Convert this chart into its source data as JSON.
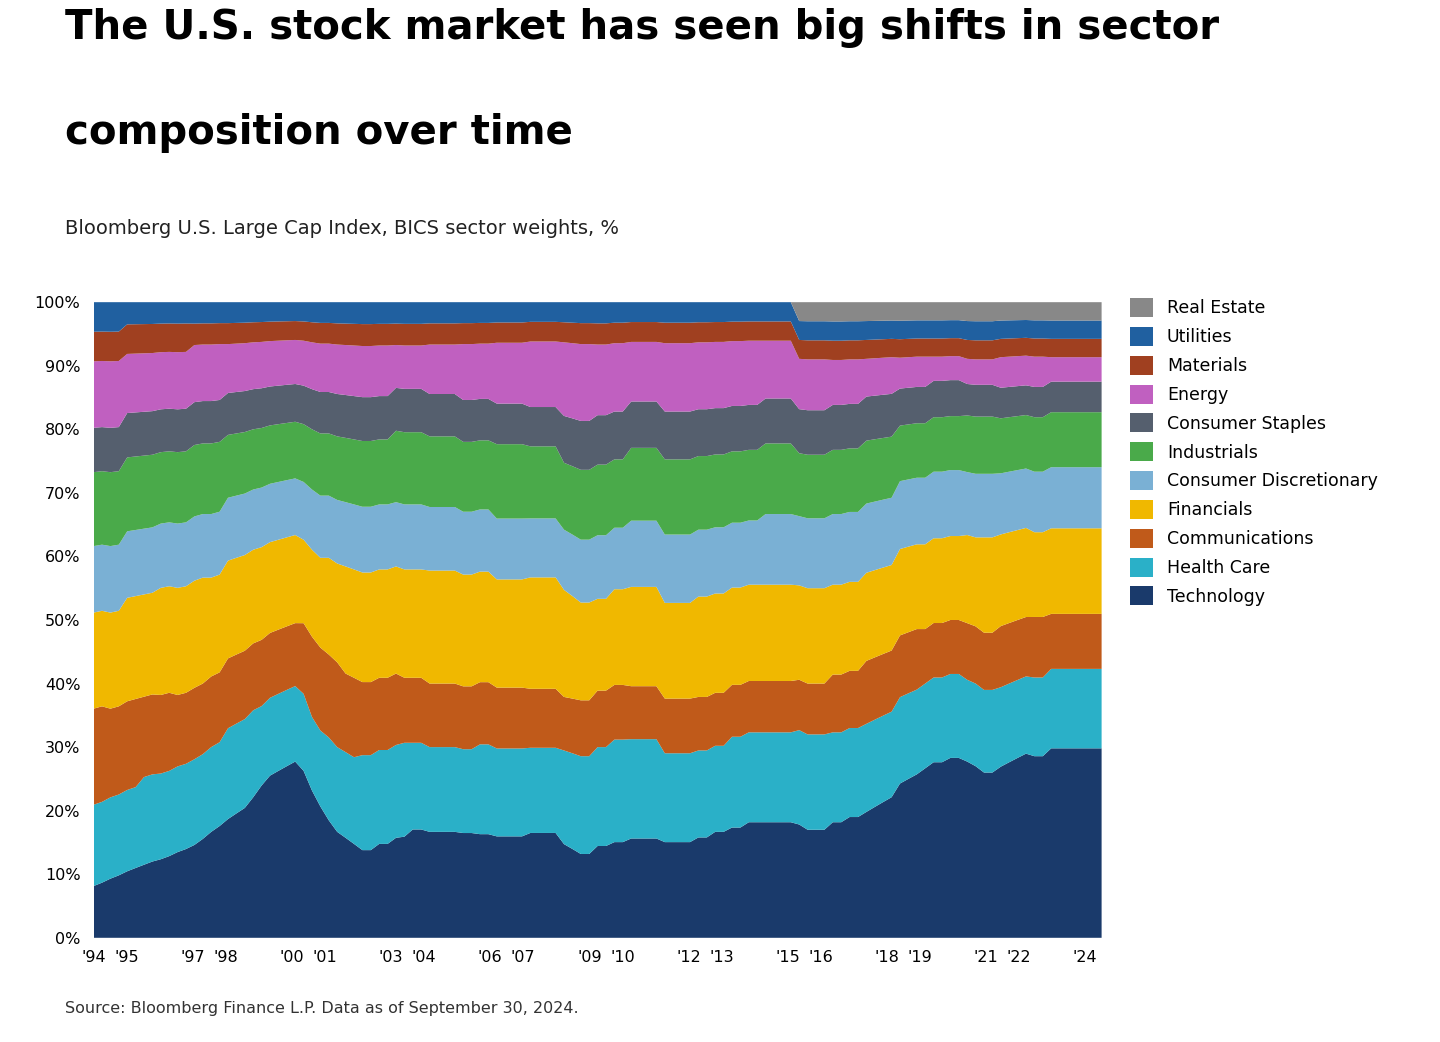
{
  "title_line1": "The U.S. stock market has seen big shifts in sector",
  "title_line2": "composition over time",
  "subtitle": "Bloomberg U.S. Large Cap Index, BICS sector weights, %",
  "source": "Source: Bloomberg Finance L.P. Data as of September 30, 2024.",
  "sectors": [
    "Technology",
    "Health Care",
    "Communications",
    "Financials",
    "Consumer Discretionary",
    "Industrials",
    "Consumer Staples",
    "Energy",
    "Materials",
    "Utilities",
    "Real Estate"
  ],
  "colors": [
    "#1a3a6b",
    "#2ab0c8",
    "#c05a1a",
    "#f0b800",
    "#7ab0d4",
    "#4aaa4a",
    "#555f6e",
    "#c060c0",
    "#a04020",
    "#2060a0",
    "#888888"
  ],
  "Technology": [
    7.0,
    7.5,
    8.0,
    8.5,
    9.0,
    9.5,
    10.0,
    10.5,
    11.0,
    11.5,
    12.0,
    12.5,
    13.0,
    14.0,
    15.0,
    16.0,
    17.0,
    18.0,
    19.0,
    21.0,
    23.0,
    25.0,
    26.0,
    27.0,
    28.0,
    26.0,
    22.0,
    19.0,
    17.0,
    15.0,
    14.0,
    13.0,
    12.0,
    12.0,
    13.0,
    13.0,
    14.0,
    14.0,
    15.0,
    15.0,
    15.0,
    15.0,
    15.0,
    15.0,
    15.0,
    15.0,
    15.0,
    15.0,
    15.0,
    15.0,
    15.0,
    15.0,
    16.0,
    16.0,
    16.0,
    16.0,
    14.0,
    13.0,
    12.0,
    12.0,
    13.0,
    13.0,
    14.0,
    14.0,
    15.0,
    15.0,
    15.0,
    15.0,
    14.0,
    14.0,
    14.0,
    14.0,
    15.0,
    15.0,
    16.0,
    16.0,
    17.0,
    17.0,
    18.0,
    18.0,
    18.0,
    18.0,
    18.0,
    18.0,
    18.0,
    17.0,
    17.0,
    17.0,
    18.0,
    18.0,
    19.0,
    19.0,
    20.0,
    21.0,
    22.0,
    23.0,
    25.0,
    26.0,
    27.0,
    28.0,
    29.0,
    29.0,
    30.0,
    30.0,
    28.0,
    27.0,
    26.0,
    26.0,
    28.0,
    29.0,
    30.0,
    31.0,
    30.0,
    30.0,
    31.0,
    31.0,
    31.0,
    31.0,
    31.0,
    31.0,
    31.0
  ],
  "Health Care": [
    11.0,
    11.0,
    11.0,
    11.0,
    11.0,
    11.0,
    12.0,
    12.0,
    12.0,
    12.0,
    12.0,
    12.0,
    12.0,
    12.0,
    12.0,
    12.0,
    13.0,
    13.0,
    13.0,
    13.0,
    12.0,
    12.0,
    12.0,
    12.0,
    12.0,
    12.0,
    11.0,
    11.0,
    12.0,
    12.0,
    12.0,
    12.0,
    13.0,
    13.0,
    13.0,
    13.0,
    13.0,
    13.0,
    12.0,
    12.0,
    12.0,
    12.0,
    12.0,
    12.0,
    12.0,
    12.0,
    13.0,
    13.0,
    13.0,
    13.0,
    13.0,
    13.0,
    13.0,
    13.0,
    13.0,
    13.0,
    14.0,
    14.0,
    14.0,
    14.0,
    14.0,
    14.0,
    15.0,
    15.0,
    15.0,
    15.0,
    15.0,
    15.0,
    13.0,
    13.0,
    13.0,
    13.0,
    13.0,
    13.0,
    13.0,
    13.0,
    14.0,
    14.0,
    14.0,
    14.0,
    14.0,
    14.0,
    14.0,
    14.0,
    15.0,
    15.0,
    15.0,
    15.0,
    14.0,
    14.0,
    14.0,
    14.0,
    14.0,
    14.0,
    14.0,
    14.0,
    14.0,
    14.0,
    14.0,
    14.0,
    14.0,
    14.0,
    14.0,
    14.0,
    13.0,
    13.0,
    13.0,
    13.0,
    13.0,
    13.0,
    13.0,
    13.0,
    13.0,
    13.0,
    13.0,
    13.0,
    13.0,
    13.0,
    13.0,
    13.0,
    13.0
  ],
  "Communications": [
    13.0,
    13.0,
    12.0,
    12.0,
    12.0,
    12.0,
    11.0,
    11.0,
    11.0,
    11.0,
    10.0,
    10.0,
    10.0,
    10.0,
    10.0,
    10.0,
    10.0,
    10.0,
    10.0,
    10.0,
    10.0,
    10.0,
    10.0,
    10.0,
    10.0,
    11.0,
    12.0,
    12.0,
    12.0,
    12.0,
    11.0,
    11.0,
    10.0,
    10.0,
    10.0,
    10.0,
    10.0,
    9.0,
    9.0,
    9.0,
    9.0,
    9.0,
    9.0,
    9.0,
    9.0,
    9.0,
    9.0,
    9.0,
    9.0,
    9.0,
    9.0,
    9.0,
    9.0,
    9.0,
    9.0,
    9.0,
    8.0,
    8.0,
    8.0,
    8.0,
    8.0,
    8.0,
    8.0,
    8.0,
    8.0,
    8.0,
    8.0,
    8.0,
    8.0,
    8.0,
    8.0,
    8.0,
    8.0,
    8.0,
    8.0,
    8.0,
    8.0,
    8.0,
    8.0,
    8.0,
    8.0,
    8.0,
    8.0,
    8.0,
    8.0,
    8.0,
    8.0,
    8.0,
    9.0,
    9.0,
    9.0,
    9.0,
    10.0,
    10.0,
    10.0,
    10.0,
    10.0,
    10.0,
    10.0,
    9.0,
    9.0,
    9.0,
    9.0,
    9.0,
    9.0,
    9.0,
    9.0,
    9.0,
    10.0,
    10.0,
    10.0,
    10.0,
    10.0,
    10.0,
    9.0,
    9.0,
    9.0,
    9.0,
    9.0,
    9.0,
    9.0
  ],
  "Financials": [
    13.0,
    13.0,
    13.0,
    13.0,
    14.0,
    14.0,
    14.0,
    14.0,
    15.0,
    15.0,
    15.0,
    15.0,
    15.0,
    15.0,
    14.0,
    14.0,
    14.0,
    14.0,
    14.0,
    14.0,
    14.0,
    14.0,
    14.0,
    14.0,
    14.0,
    13.0,
    13.0,
    13.0,
    14.0,
    14.0,
    15.0,
    15.0,
    15.0,
    15.0,
    15.0,
    15.0,
    15.0,
    15.0,
    15.0,
    15.0,
    16.0,
    16.0,
    16.0,
    16.0,
    16.0,
    16.0,
    16.0,
    16.0,
    16.0,
    16.0,
    16.0,
    16.0,
    17.0,
    17.0,
    17.0,
    17.0,
    16.0,
    15.0,
    14.0,
    14.0,
    13.0,
    13.0,
    14.0,
    14.0,
    15.0,
    15.0,
    15.0,
    15.0,
    14.0,
    14.0,
    14.0,
    14.0,
    15.0,
    15.0,
    15.0,
    15.0,
    15.0,
    15.0,
    15.0,
    15.0,
    15.0,
    15.0,
    15.0,
    15.0,
    15.0,
    15.0,
    15.0,
    15.0,
    14.0,
    14.0,
    14.0,
    14.0,
    14.0,
    14.0,
    14.0,
    14.0,
    14.0,
    14.0,
    14.0,
    14.0,
    14.0,
    14.0,
    14.0,
    14.0,
    14.0,
    14.0,
    15.0,
    15.0,
    15.0,
    15.0,
    15.0,
    15.0,
    14.0,
    14.0,
    14.0,
    14.0,
    14.0,
    14.0,
    14.0,
    14.0,
    14.0
  ],
  "Consumer Discretionary": [
    9.0,
    9.0,
    9.0,
    9.0,
    9.0,
    9.0,
    9.0,
    9.0,
    9.0,
    9.0,
    9.0,
    9.0,
    9.0,
    9.0,
    9.0,
    9.0,
    9.0,
    9.0,
    9.0,
    9.0,
    9.0,
    9.0,
    9.0,
    9.0,
    9.0,
    9.0,
    9.0,
    9.0,
    9.0,
    9.0,
    9.0,
    9.0,
    9.0,
    9.0,
    9.0,
    9.0,
    9.0,
    9.0,
    9.0,
    9.0,
    9.0,
    9.0,
    9.0,
    9.0,
    9.0,
    9.0,
    9.0,
    9.0,
    9.0,
    9.0,
    9.0,
    9.0,
    9.0,
    9.0,
    9.0,
    9.0,
    9.0,
    9.0,
    9.0,
    9.0,
    9.0,
    9.0,
    9.0,
    9.0,
    10.0,
    10.0,
    10.0,
    10.0,
    10.0,
    10.0,
    10.0,
    10.0,
    10.0,
    10.0,
    10.0,
    10.0,
    10.0,
    10.0,
    10.0,
    10.0,
    11.0,
    11.0,
    11.0,
    11.0,
    11.0,
    11.0,
    11.0,
    11.0,
    11.0,
    11.0,
    11.0,
    11.0,
    11.0,
    11.0,
    11.0,
    11.0,
    11.0,
    11.0,
    11.0,
    11.0,
    11.0,
    11.0,
    11.0,
    11.0,
    10.0,
    10.0,
    10.0,
    10.0,
    10.0,
    10.0,
    10.0,
    10.0,
    10.0,
    10.0,
    10.0,
    10.0,
    10.0,
    10.0,
    10.0,
    10.0,
    10.0
  ],
  "Industrials": [
    10.0,
    10.0,
    10.0,
    10.0,
    10.0,
    10.0,
    10.0,
    10.0,
    10.0,
    10.0,
    10.0,
    10.0,
    10.0,
    10.0,
    10.0,
    10.0,
    9.0,
    9.0,
    9.0,
    9.0,
    9.0,
    9.0,
    9.0,
    9.0,
    9.0,
    9.0,
    9.0,
    9.0,
    9.0,
    9.0,
    9.0,
    9.0,
    9.0,
    9.0,
    9.0,
    9.0,
    10.0,
    10.0,
    10.0,
    10.0,
    10.0,
    10.0,
    10.0,
    10.0,
    10.0,
    10.0,
    10.0,
    10.0,
    11.0,
    11.0,
    11.0,
    11.0,
    11.0,
    11.0,
    11.0,
    11.0,
    10.0,
    10.0,
    10.0,
    10.0,
    10.0,
    10.0,
    10.0,
    10.0,
    11.0,
    11.0,
    11.0,
    11.0,
    11.0,
    11.0,
    11.0,
    11.0,
    11.0,
    11.0,
    11.0,
    11.0,
    11.0,
    11.0,
    11.0,
    11.0,
    11.0,
    11.0,
    11.0,
    11.0,
    10.0,
    10.0,
    10.0,
    10.0,
    10.0,
    10.0,
    10.0,
    10.0,
    10.0,
    10.0,
    10.0,
    10.0,
    9.0,
    9.0,
    9.0,
    9.0,
    9.0,
    9.0,
    9.0,
    9.0,
    9.0,
    9.0,
    9.0,
    9.0,
    9.0,
    9.0,
    9.0,
    9.0,
    9.0,
    9.0,
    9.0,
    9.0,
    9.0,
    9.0,
    9.0,
    9.0,
    9.0
  ],
  "Consumer Staples": [
    6.0,
    6.0,
    6.0,
    6.0,
    6.0,
    6.0,
    6.0,
    6.0,
    6.0,
    6.0,
    6.0,
    6.0,
    6.0,
    6.0,
    6.0,
    6.0,
    6.0,
    6.0,
    6.0,
    6.0,
    6.0,
    6.0,
    6.0,
    6.0,
    6.0,
    6.0,
    6.0,
    6.0,
    6.0,
    6.0,
    6.0,
    6.0,
    6.0,
    6.0,
    6.0,
    6.0,
    6.0,
    6.0,
    6.0,
    6.0,
    6.0,
    6.0,
    6.0,
    6.0,
    6.0,
    6.0,
    6.0,
    6.0,
    6.0,
    6.0,
    6.0,
    6.0,
    6.0,
    6.0,
    6.0,
    6.0,
    7.0,
    7.0,
    7.0,
    7.0,
    7.0,
    7.0,
    7.0,
    7.0,
    7.0,
    7.0,
    7.0,
    7.0,
    7.0,
    7.0,
    7.0,
    7.0,
    7.0,
    7.0,
    7.0,
    7.0,
    7.0,
    7.0,
    7.0,
    7.0,
    7.0,
    7.0,
    7.0,
    7.0,
    7.0,
    7.0,
    7.0,
    7.0,
    7.0,
    7.0,
    7.0,
    7.0,
    7.0,
    7.0,
    7.0,
    7.0,
    6.0,
    6.0,
    6.0,
    6.0,
    6.0,
    6.0,
    6.0,
    6.0,
    5.0,
    5.0,
    5.0,
    5.0,
    5.0,
    5.0,
    5.0,
    5.0,
    5.0,
    5.0,
    5.0,
    5.0,
    5.0,
    5.0,
    5.0,
    5.0,
    5.0
  ],
  "Energy": [
    9.0,
    9.0,
    9.0,
    9.0,
    8.0,
    8.0,
    8.0,
    8.0,
    8.0,
    8.0,
    8.0,
    8.0,
    8.0,
    8.0,
    8.0,
    8.0,
    7.0,
    7.0,
    7.0,
    7.0,
    7.0,
    7.0,
    7.0,
    7.0,
    7.0,
    7.0,
    7.0,
    7.0,
    7.0,
    7.0,
    7.0,
    7.0,
    7.0,
    7.0,
    7.0,
    7.0,
    6.0,
    6.0,
    6.0,
    6.0,
    7.0,
    7.0,
    7.0,
    7.0,
    8.0,
    8.0,
    8.0,
    8.0,
    9.0,
    9.0,
    9.0,
    9.0,
    10.0,
    10.0,
    10.0,
    10.0,
    11.0,
    11.0,
    11.0,
    11.0,
    10.0,
    10.0,
    10.0,
    10.0,
    9.0,
    9.0,
    9.0,
    9.0,
    10.0,
    10.0,
    10.0,
    10.0,
    10.0,
    10.0,
    10.0,
    10.0,
    10.0,
    10.0,
    10.0,
    10.0,
    9.0,
    9.0,
    9.0,
    9.0,
    8.0,
    8.0,
    8.0,
    8.0,
    7.0,
    7.0,
    7.0,
    7.0,
    6.0,
    6.0,
    6.0,
    6.0,
    5.0,
    5.0,
    5.0,
    5.0,
    4.0,
    4.0,
    4.0,
    4.0,
    4.0,
    4.0,
    4.0,
    4.0,
    5.0,
    5.0,
    5.0,
    5.0,
    5.0,
    5.0,
    4.0,
    4.0,
    4.0,
    4.0,
    4.0,
    4.0,
    4.0
  ],
  "Materials": [
    4.0,
    4.0,
    4.0,
    4.0,
    4.0,
    4.0,
    4.0,
    4.0,
    4.0,
    4.0,
    4.0,
    4.0,
    3.0,
    3.0,
    3.0,
    3.0,
    3.0,
    3.0,
    3.0,
    3.0,
    3.0,
    3.0,
    3.0,
    3.0,
    3.0,
    3.0,
    3.0,
    3.0,
    3.0,
    3.0,
    3.0,
    3.0,
    3.0,
    3.0,
    3.0,
    3.0,
    3.0,
    3.0,
    3.0,
    3.0,
    3.0,
    3.0,
    3.0,
    3.0,
    3.0,
    3.0,
    3.0,
    3.0,
    3.0,
    3.0,
    3.0,
    3.0,
    3.0,
    3.0,
    3.0,
    3.0,
    3.0,
    3.0,
    3.0,
    3.0,
    3.0,
    3.0,
    3.0,
    3.0,
    3.0,
    3.0,
    3.0,
    3.0,
    3.0,
    3.0,
    3.0,
    3.0,
    3.0,
    3.0,
    3.0,
    3.0,
    3.0,
    3.0,
    3.0,
    3.0,
    3.0,
    3.0,
    3.0,
    3.0,
    3.0,
    3.0,
    3.0,
    3.0,
    3.0,
    3.0,
    3.0,
    3.0,
    3.0,
    3.0,
    3.0,
    3.0,
    3.0,
    3.0,
    3.0,
    3.0,
    3.0,
    3.0,
    3.0,
    3.0,
    3.0,
    3.0,
    3.0,
    3.0,
    3.0,
    3.0,
    3.0,
    3.0,
    3.0,
    3.0,
    3.0,
    3.0,
    3.0,
    3.0,
    3.0,
    3.0,
    3.0
  ],
  "Utilities": [
    4.0,
    4.0,
    4.0,
    4.0,
    3.0,
    3.0,
    3.0,
    3.0,
    3.0,
    3.0,
    3.0,
    3.0,
    3.0,
    3.0,
    3.0,
    3.0,
    3.0,
    3.0,
    3.0,
    3.0,
    3.0,
    3.0,
    3.0,
    3.0,
    3.0,
    3.0,
    3.0,
    3.0,
    3.0,
    3.0,
    3.0,
    3.0,
    3.0,
    3.0,
    3.0,
    3.0,
    3.0,
    3.0,
    3.0,
    3.0,
    3.0,
    3.0,
    3.0,
    3.0,
    3.0,
    3.0,
    3.0,
    3.0,
    3.0,
    3.0,
    3.0,
    3.0,
    3.0,
    3.0,
    3.0,
    3.0,
    3.0,
    3.0,
    3.0,
    3.0,
    3.0,
    3.0,
    3.0,
    3.0,
    3.0,
    3.0,
    3.0,
    3.0,
    3.0,
    3.0,
    3.0,
    3.0,
    3.0,
    3.0,
    3.0,
    3.0,
    3.0,
    3.0,
    3.0,
    3.0,
    3.0,
    3.0,
    3.0,
    3.0,
    3.0,
    3.0,
    3.0,
    3.0,
    3.0,
    3.0,
    3.0,
    3.0,
    3.0,
    3.0,
    3.0,
    3.0,
    3.0,
    3.0,
    3.0,
    3.0,
    3.0,
    3.0,
    3.0,
    3.0,
    3.0,
    3.0,
    3.0,
    3.0,
    3.0,
    3.0,
    3.0,
    3.0,
    3.0,
    3.0,
    3.0,
    3.0,
    3.0,
    3.0,
    3.0,
    3.0,
    3.0
  ],
  "Real Estate": [
    0.0,
    0.0,
    0.0,
    0.0,
    0.0,
    0.0,
    0.0,
    0.0,
    0.0,
    0.0,
    0.0,
    0.0,
    0.0,
    0.0,
    0.0,
    0.0,
    0.0,
    0.0,
    0.0,
    0.0,
    0.0,
    0.0,
    0.0,
    0.0,
    0.0,
    0.0,
    0.0,
    0.0,
    0.0,
    0.0,
    0.0,
    0.0,
    0.0,
    0.0,
    0.0,
    0.0,
    0.0,
    0.0,
    0.0,
    0.0,
    0.0,
    0.0,
    0.0,
    0.0,
    0.0,
    0.0,
    0.0,
    0.0,
    0.0,
    0.0,
    0.0,
    0.0,
    0.0,
    0.0,
    0.0,
    0.0,
    0.0,
    0.0,
    0.0,
    0.0,
    0.0,
    0.0,
    0.0,
    0.0,
    0.0,
    0.0,
    0.0,
    0.0,
    0.0,
    0.0,
    0.0,
    0.0,
    0.0,
    0.0,
    0.0,
    0.0,
    0.0,
    0.0,
    0.0,
    0.0,
    0.0,
    0.0,
    0.0,
    0.0,
    3.0,
    3.0,
    3.0,
    3.0,
    3.0,
    3.0,
    3.0,
    3.0,
    3.0,
    3.0,
    3.0,
    3.0,
    3.0,
    3.0,
    3.0,
    3.0,
    3.0,
    3.0,
    3.0,
    3.0,
    3.0,
    3.0,
    3.0,
    3.0,
    3.0,
    3.0,
    3.0,
    3.0,
    3.0,
    3.0,
    3.0,
    3.0,
    3.0,
    3.0,
    3.0,
    3.0,
    3.0
  ],
  "xtick_years": [
    1994,
    1995,
    1997,
    1998,
    2000,
    2001,
    2003,
    2004,
    2006,
    2007,
    2009,
    2010,
    2012,
    2013,
    2015,
    2016,
    2018,
    2019,
    2021,
    2022,
    2024
  ],
  "xtick_labels": [
    "'94",
    "'95",
    "'97",
    "'98",
    "'00",
    "'01",
    "'03",
    "'04",
    "'06",
    "'07",
    "'09",
    "'10",
    "'12",
    "'13",
    "'15",
    "'16",
    "'18",
    "'19",
    "'21",
    "'22",
    "'24"
  ],
  "n_points": 121
}
